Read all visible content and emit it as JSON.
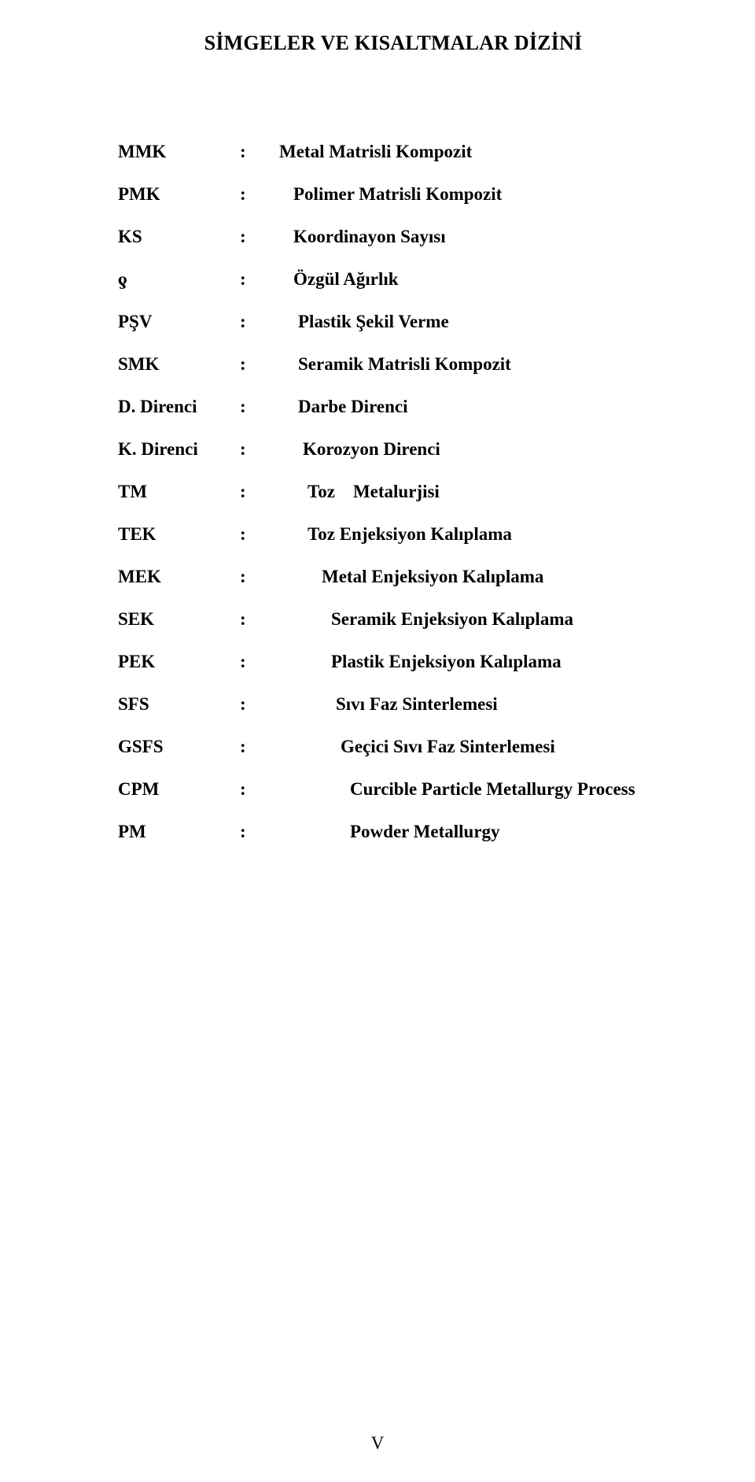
{
  "title": "SİMGELER VE KISALTMALAR DİZİNİ",
  "page_number": "V",
  "text_color": "#000000",
  "background_color": "#ffffff",
  "font_family": "Times New Roman",
  "title_fontsize": 26,
  "body_fontsize": 23,
  "entries": [
    {
      "abbr": "MMK",
      "desc": "Metal Matrisli Kompozit",
      "indent": 5
    },
    {
      "abbr": "PMK",
      "desc": "Polimer Matrisli Kompozit",
      "indent": 8
    },
    {
      "abbr": "KS",
      "desc": "Koordinayon Sayısı",
      "indent": 8
    },
    {
      "abbr": "ƍ",
      "desc": "Özgül Ağırlık",
      "indent": 8
    },
    {
      "abbr": "PŞV",
      "desc": "Plastik Şekil Verme",
      "indent": 9
    },
    {
      "abbr": "SMK",
      "desc": "Seramik Matrisli Kompozit",
      "indent": 9
    },
    {
      "abbr": "D. Direnci",
      "desc": "Darbe Direnci",
      "indent": 9
    },
    {
      "abbr": "K. Direnci",
      "desc": "Korozyon Direnci",
      "indent": 10
    },
    {
      "abbr": "TM",
      "desc": "Toz    Metalurjisi",
      "indent": 11
    },
    {
      "abbr": "TEK",
      "desc": "Toz Enjeksiyon Kalıplama",
      "indent": 11
    },
    {
      "abbr": "MEK",
      "desc": "Metal Enjeksiyon Kalıplama",
      "indent": 14
    },
    {
      "abbr": "SEK",
      "desc": "Seramik Enjeksiyon Kalıplama",
      "indent": 16
    },
    {
      "abbr": "PEK",
      "desc": "Plastik Enjeksiyon Kalıplama",
      "indent": 16
    },
    {
      "abbr": "SFS",
      "desc": "Sıvı Faz Sinterlemesi",
      "indent": 17
    },
    {
      "abbr": "GSFS",
      "desc": "Geçici Sıvı Faz Sinterlemesi",
      "indent": 18
    },
    {
      "abbr": "CPM",
      "desc": "Curcible Particle Metallurgy Process",
      "indent": 20
    },
    {
      "abbr": "PM",
      "desc": "Powder Metallurgy",
      "indent": 20
    }
  ]
}
